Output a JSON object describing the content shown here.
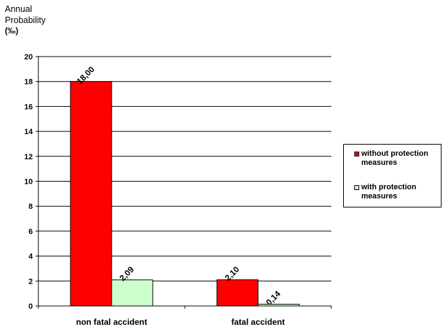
{
  "chart_data": {
    "type": "bar",
    "ylabel_lines": [
      "Annual",
      "Probability"
    ],
    "ylabel_unit": "(‰)",
    "categories": [
      "non fatal accident",
      "fatal accident"
    ],
    "series": [
      {
        "name": "without protection measures",
        "color": "#ff0000",
        "values": [
          18.0,
          2.1
        ],
        "labels": [
          "18,00",
          "2,10"
        ]
      },
      {
        "name": "with protection measures",
        "color": "#ccffcc",
        "values": [
          2.09,
          0.14
        ],
        "labels": [
          "2,09",
          "0,14"
        ]
      }
    ],
    "ylim": [
      0,
      20
    ],
    "yticks": [
      0,
      2,
      4,
      6,
      8,
      10,
      12,
      14,
      16,
      18,
      20
    ],
    "grid": true,
    "legend_position": "right"
  },
  "legend": {
    "items": [
      {
        "label": "without protection measures",
        "color": "#ff0000"
      },
      {
        "label": "with protection measures",
        "color": "#ccffcc"
      }
    ]
  }
}
